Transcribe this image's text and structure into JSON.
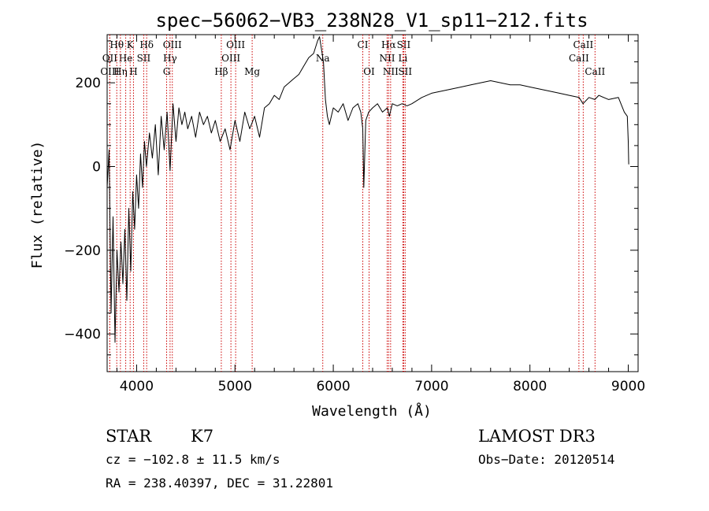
{
  "chart_data": {
    "type": "line",
    "title": "spec−56062−VB3_238N28_V1_sp11−212.fits",
    "xlabel": "Wavelength (Å)",
    "ylabel": "Flux (relative)",
    "xlim": [
      3700,
      9100
    ],
    "ylim": [
      -490,
      315
    ],
    "xticks": [
      4000,
      5000,
      6000,
      7000,
      8000,
      9000
    ],
    "xtick_labels": [
      "4000",
      "5000",
      "6000",
      "7000",
      "8000",
      "9000"
    ],
    "yticks": [
      -400,
      -200,
      0,
      200
    ],
    "ytick_labels": [
      "−400",
      "−200",
      "0",
      "200"
    ],
    "series": [
      {
        "name": "spectrum",
        "x": [
          3700,
          3720,
          3740,
          3760,
          3780,
          3800,
          3820,
          3840,
          3860,
          3880,
          3900,
          3920,
          3940,
          3960,
          3980,
          4000,
          4020,
          4040,
          4060,
          4080,
          4100,
          4130,
          4160,
          4190,
          4220,
          4250,
          4280,
          4310,
          4340,
          4370,
          4400,
          4430,
          4460,
          4490,
          4520,
          4560,
          4600,
          4640,
          4680,
          4720,
          4760,
          4800,
          4850,
          4900,
          4950,
          5000,
          5050,
          5100,
          5150,
          5200,
          5250,
          5300,
          5350,
          5400,
          5450,
          5500,
          5550,
          5600,
          5650,
          5700,
          5750,
          5800,
          5840,
          5860,
          5880,
          5900,
          5920,
          5940,
          5960,
          6000,
          6050,
          6100,
          6150,
          6200,
          6250,
          6280,
          6300,
          6310,
          6330,
          6360,
          6400,
          6450,
          6500,
          6550,
          6570,
          6600,
          6650,
          6700,
          6750,
          6800,
          6900,
          7000,
          7100,
          7200,
          7300,
          7400,
          7500,
          7600,
          7700,
          7800,
          7900,
          8000,
          8100,
          8200,
          8300,
          8400,
          8500,
          8540,
          8600,
          8660,
          8700,
          8800,
          8900,
          8960,
          8990,
          9000,
          9005
        ],
        "y": [
          -50,
          40,
          -350,
          -120,
          -420,
          -200,
          -300,
          -180,
          -280,
          -150,
          -320,
          -100,
          -250,
          -60,
          -150,
          -20,
          -100,
          30,
          -50,
          60,
          0,
          80,
          20,
          100,
          -20,
          120,
          40,
          130,
          -10,
          150,
          60,
          140,
          100,
          130,
          90,
          120,
          70,
          130,
          100,
          120,
          80,
          110,
          60,
          90,
          40,
          110,
          60,
          130,
          90,
          120,
          70,
          140,
          150,
          170,
          160,
          190,
          200,
          210,
          220,
          240,
          260,
          270,
          300,
          310,
          280,
          250,
          160,
          120,
          100,
          140,
          130,
          150,
          110,
          140,
          150,
          130,
          90,
          -50,
          110,
          130,
          140,
          150,
          130,
          140,
          120,
          150,
          145,
          150,
          145,
          150,
          165,
          175,
          180,
          185,
          190,
          195,
          200,
          205,
          200,
          195,
          195,
          190,
          185,
          180,
          175,
          170,
          165,
          150,
          165,
          160,
          170,
          160,
          165,
          130,
          120,
          60,
          5
        ]
      }
    ],
    "line_markers": [
      {
        "label": "Hθ",
        "wavelength": 3798,
        "row": 1
      },
      {
        "label": "K",
        "wavelength": 3934,
        "row": 1
      },
      {
        "label": "Hδ",
        "wavelength": 4102,
        "row": 1
      },
      {
        "label": "OIII",
        "wavelength": 4363,
        "row": 1
      },
      {
        "label": "OIII",
        "wavelength": 5007,
        "row": 1
      },
      {
        "label": "CI",
        "wavelength": 6300,
        "row": 1
      },
      {
        "label": "Hα",
        "wavelength": 6563,
        "row": 1
      },
      {
        "label": "SII",
        "wavelength": 6716,
        "row": 1
      },
      {
        "label": "CaII",
        "wavelength": 8542,
        "row": 1
      },
      {
        "label": "OII",
        "wavelength": 3727,
        "row": 2
      },
      {
        "label": "He",
        "wavelength": 3889,
        "row": 2
      },
      {
        "label": "SII",
        "wavelength": 4072,
        "row": 2
      },
      {
        "label": "Hγ",
        "wavelength": 4340,
        "row": 2
      },
      {
        "label": "OIII",
        "wavelength": 4959,
        "row": 2
      },
      {
        "label": "Na",
        "wavelength": 5893,
        "row": 2
      },
      {
        "label": "NII",
        "wavelength": 6548,
        "row": 2
      },
      {
        "label": "Li",
        "wavelength": 6708,
        "row": 2
      },
      {
        "label": "CaII",
        "wavelength": 8498,
        "row": 2
      },
      {
        "label": "OIII",
        "wavelength": 3727,
        "row": 3
      },
      {
        "label": "Hη",
        "wavelength": 3835,
        "row": 3
      },
      {
        "label": "H",
        "wavelength": 3968,
        "row": 3
      },
      {
        "label": "G",
        "wavelength": 4305,
        "row": 3
      },
      {
        "label": "Hβ",
        "wavelength": 4861,
        "row": 3
      },
      {
        "label": "Mg",
        "wavelength": 5175,
        "row": 3
      },
      {
        "label": "OI",
        "wavelength": 6364,
        "row": 3
      },
      {
        "label": "NII",
        "wavelength": 6583,
        "row": 3
      },
      {
        "label": "SII",
        "wavelength": 6731,
        "row": 3
      },
      {
        "label": "CaII",
        "wavelength": 8662,
        "row": 3
      }
    ],
    "marker_color": "#cc0000"
  },
  "info": {
    "object_class": "STAR",
    "subclass": "K7",
    "survey": "LAMOST DR3",
    "cz": "cz = −102.8 ± 11.5 km/s",
    "obs_date": "Obs−Date: 20120514",
    "coords": "RA = 238.40397, DEC =  31.22801"
  }
}
